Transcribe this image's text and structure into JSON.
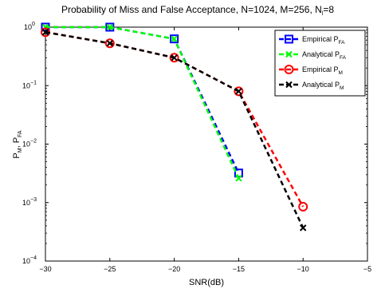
{
  "chart_data": {
    "type": "line",
    "title": {
      "main": "Probability of Miss and False Acceptance, N=1024, M=256, N",
      "sub": "l",
      "tail": "=8"
    },
    "xlabel": "SNR(dB)",
    "ylabel": {
      "p1": "P",
      "s1": "M",
      "p2": ", P",
      "s2": "FA"
    },
    "xlim": [
      -30,
      -5
    ],
    "ylim": [
      0.0001,
      1
    ],
    "yscale": "log",
    "xticks": [
      -30,
      -25,
      -20,
      -15,
      -10,
      -5
    ],
    "xtick_labels": [
      "−30",
      "−25",
      "−20",
      "−15",
      "−10",
      "−5"
    ],
    "yticks": [
      {
        "value": 0.0001,
        "base": "10",
        "exp": "−4"
      },
      {
        "value": 0.001,
        "base": "10",
        "exp": "−3"
      },
      {
        "value": 0.01,
        "base": "10",
        "exp": "−2"
      },
      {
        "value": 0.1,
        "base": "10",
        "exp": "−1"
      },
      {
        "value": 1,
        "base": "10",
        "exp": "0"
      }
    ],
    "grid": false,
    "legend_position": "top-right",
    "series": [
      {
        "label": "Empirical P",
        "label_sub": "FA",
        "color": "#0000ff",
        "marker": "square",
        "x": [
          -30,
          -25,
          -20,
          -15
        ],
        "y": [
          1.0,
          1.0,
          0.63,
          0.0032
        ]
      },
      {
        "label": "Analytical P",
        "label_sub": "FA",
        "color": "#00ff00",
        "marker": "x",
        "x": [
          -30,
          -25,
          -20,
          -15
        ],
        "y": [
          1.0,
          1.0,
          0.63,
          0.0026
        ]
      },
      {
        "label": "Empirical P",
        "label_sub": "M",
        "color": "#ff0000",
        "marker": "circle",
        "x": [
          -30,
          -25,
          -20,
          -15,
          -10
        ],
        "y": [
          0.82,
          0.53,
          0.3,
          0.08,
          0.00085
        ]
      },
      {
        "label": "Analytical P",
        "label_sub": "M",
        "color": "#000000",
        "marker": "x",
        "x": [
          -30,
          -25,
          -20,
          -15,
          -10
        ],
        "y": [
          0.82,
          0.53,
          0.3,
          0.08,
          0.00037
        ]
      }
    ]
  }
}
